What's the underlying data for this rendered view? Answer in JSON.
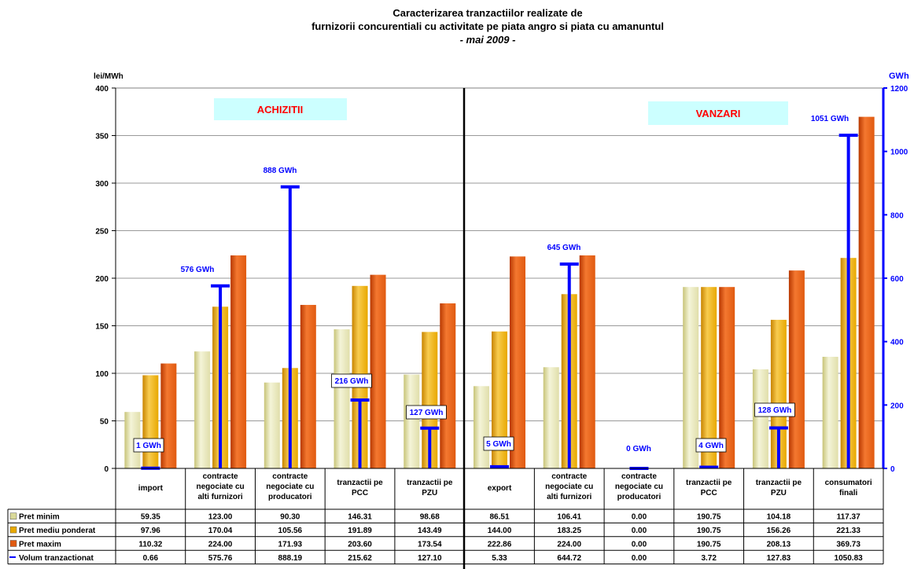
{
  "chart_data": {
    "type": "bar",
    "title": "Caracterizarea tranzactiilor realizate de",
    "title_line2": "furnizorii concurentiali cu activitate pe piata angro si piata cu amanuntul",
    "subtitle": "- mai 2009 -",
    "ylabel": "lei/MWh",
    "y2label": "GWh",
    "ylim": [
      0,
      400
    ],
    "y2lim": [
      0,
      1200
    ],
    "yticks": [
      "0",
      "50",
      "100",
      "150",
      "200",
      "250",
      "300",
      "350",
      "400"
    ],
    "y2ticks": [
      "0",
      "200",
      "400",
      "600",
      "800",
      "1000",
      "1200"
    ],
    "grid": true,
    "sections": [
      "ACHIZITII",
      "VANZARI"
    ],
    "categories": [
      [
        "import"
      ],
      [
        "contracte",
        "negociate cu",
        "alti furnizori"
      ],
      [
        "contracte",
        "negociate cu",
        "producatori"
      ],
      [
        "tranzactii pe",
        "PCC"
      ],
      [
        "tranzactii pe",
        "PZU"
      ],
      [
        "export"
      ],
      [
        "contracte",
        "negociate cu",
        "alti furnizori"
      ],
      [
        "contracte",
        "negociate cu",
        "producatori"
      ],
      [
        "tranzactii pe",
        "PCC"
      ],
      [
        "tranzactii pe",
        "PZU"
      ],
      [
        "consumatori",
        "finali"
      ]
    ],
    "series": [
      {
        "name": "Pret minim",
        "color": "#d8d898",
        "values": [
          59.35,
          123.0,
          90.3,
          146.31,
          98.68,
          86.51,
          106.41,
          0.0,
          190.75,
          104.18,
          117.37
        ]
      },
      {
        "name": "Pret mediu ponderat",
        "color": "#e8a800",
        "values": [
          97.96,
          170.04,
          105.56,
          191.89,
          143.49,
          144.0,
          183.25,
          0.0,
          190.75,
          156.26,
          221.33
        ]
      },
      {
        "name": "Pret maxim",
        "color": "#e05a10",
        "values": [
          110.32,
          224.0,
          171.93,
          203.6,
          173.54,
          222.86,
          224.0,
          0.0,
          190.75,
          208.13,
          369.73
        ]
      }
    ],
    "volume": {
      "name": "Volum tranzactionat",
      "color": "#1a1aff",
      "values": [
        0.66,
        575.76,
        888.19,
        215.62,
        127.1,
        5.33,
        644.72,
        0.0,
        3.72,
        127.83,
        1050.83
      ],
      "labels": [
        "1 GWh",
        "576 GWh",
        "888 GWh",
        "216 GWh",
        "127 GWh",
        "5 GWh",
        "645 GWh",
        "0 GWh",
        "4 GWh",
        "128 GWh",
        "1051 GWh"
      ]
    },
    "table": [
      [
        "59.35",
        "123.00",
        "90.30",
        "146.31",
        "98.68",
        "86.51",
        "106.41",
        "0.00",
        "190.75",
        "104.18",
        "117.37"
      ],
      [
        "97.96",
        "170.04",
        "105.56",
        "191.89",
        "143.49",
        "144.00",
        "183.25",
        "0.00",
        "190.75",
        "156.26",
        "221.33"
      ],
      [
        "110.32",
        "224.00",
        "171.93",
        "203.60",
        "173.54",
        "222.86",
        "224.00",
        "0.00",
        "190.75",
        "208.13",
        "369.73"
      ],
      [
        "0.66",
        "575.76",
        "888.19",
        "215.62",
        "127.10",
        "5.33",
        "644.72",
        "0.00",
        "3.72",
        "127.83",
        "1050.83"
      ]
    ]
  }
}
